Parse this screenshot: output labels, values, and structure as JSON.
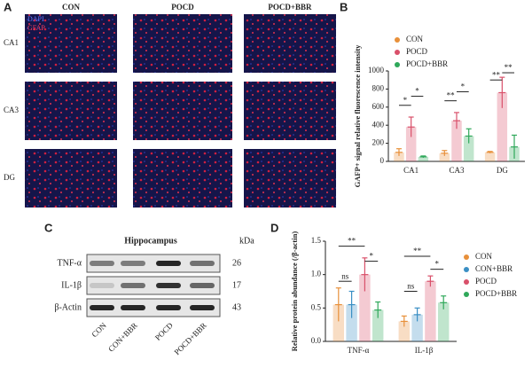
{
  "panel_labels": [
    "A",
    "B",
    "C",
    "D"
  ],
  "panel_a": {
    "columns": [
      "CON",
      "POCD",
      "POCD+BBR"
    ],
    "rows": [
      "CA1",
      "CA3",
      "DG"
    ],
    "stains": [
      "DAPI",
      "GFAP"
    ]
  },
  "panel_c": {
    "title": "Hippocampus",
    "unit": "kDa",
    "proteins": [
      {
        "name": "TNF-α",
        "kda": 26
      },
      {
        "name": "IL-1β",
        "kda": 17
      },
      {
        "name": "β-Actin",
        "kda": 43
      }
    ],
    "lanes": [
      "CON",
      "CON+BBR",
      "POCD",
      "POCD+BBR"
    ]
  },
  "chart_data": [
    {
      "type": "bar",
      "y_label": "GAFP+ signal relative fluorescence intensity",
      "categories": [
        "CA1",
        "CA3",
        "DG"
      ],
      "series": [
        {
          "name": "CON",
          "color": "#e8903a",
          "values": [
            100,
            90,
            100
          ],
          "errors": [
            40,
            30,
            10
          ]
        },
        {
          "name": "POCD",
          "color": "#d9506a",
          "values": [
            380,
            450,
            760
          ],
          "errors": [
            110,
            90,
            170
          ]
        },
        {
          "name": "POCD+BBR",
          "color": "#2fa85a",
          "values": [
            50,
            280,
            160
          ],
          "errors": [
            10,
            80,
            130
          ]
        }
      ],
      "ylim": [
        0,
        1000
      ],
      "yticks": [
        0,
        200,
        400,
        600,
        800,
        1000
      ],
      "annotations": [
        "*",
        "*",
        "**",
        "*",
        "**",
        "**"
      ],
      "legend": "upper-left"
    },
    {
      "type": "bar",
      "y_label": "Relative protein abundance (/β-actin)",
      "categories": [
        "TNF-α",
        "IL-1β"
      ],
      "series": [
        {
          "name": "CON",
          "color": "#e8903a",
          "values": [
            0.55,
            0.3
          ],
          "errors": [
            0.25,
            0.08
          ]
        },
        {
          "name": "CON+BBR",
          "color": "#3a8fc4",
          "values": [
            0.55,
            0.4
          ],
          "errors": [
            0.2,
            0.1
          ]
        },
        {
          "name": "POCD",
          "color": "#d9506a",
          "values": [
            1.0,
            0.9
          ],
          "errors": [
            0.25,
            0.08
          ]
        },
        {
          "name": "POCD+BBR",
          "color": "#2fa85a",
          "values": [
            0.47,
            0.58
          ],
          "errors": [
            0.12,
            0.1
          ]
        }
      ],
      "ylim": [
        0,
        1.5
      ],
      "yticks": [
        {
          "value": 0,
          "label": "0.0"
        },
        {
          "value": 0.5,
          "label": "0.5"
        },
        {
          "value": 1,
          "label": "1.0"
        },
        {
          "value": 1.5,
          "label": "1.5"
        }
      ],
      "annotations": [
        "ns",
        "**",
        "*",
        "ns",
        "**",
        "*"
      ],
      "legend": "right"
    }
  ]
}
